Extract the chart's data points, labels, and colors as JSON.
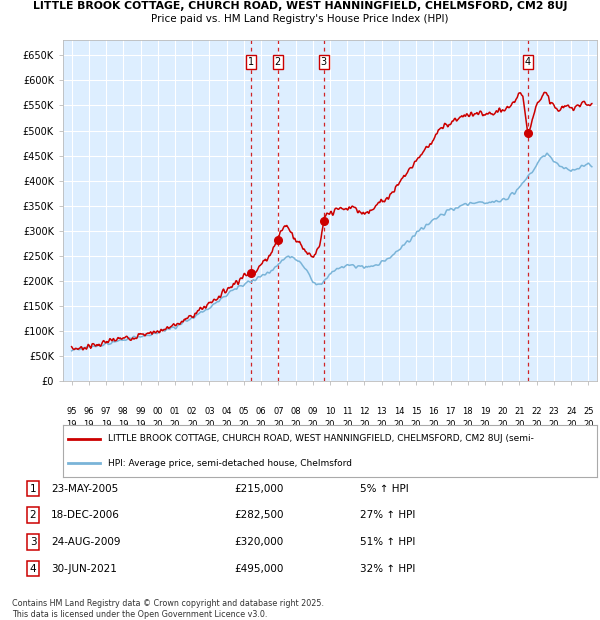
{
  "title_line1": "LITTLE BROOK COTTAGE, CHURCH ROAD, WEST HANNINGFIELD, CHELMSFORD, CM2 8UJ",
  "title_line2": "Price paid vs. HM Land Registry's House Price Index (HPI)",
  "ylabel_vals": [
    0,
    50000,
    100000,
    150000,
    200000,
    250000,
    300000,
    350000,
    400000,
    450000,
    500000,
    550000,
    600000,
    650000
  ],
  "ylabel_labels": [
    "£0",
    "£50K",
    "£100K",
    "£150K",
    "£200K",
    "£250K",
    "£300K",
    "£350K",
    "£400K",
    "£450K",
    "£500K",
    "£550K",
    "£600K",
    "£650K"
  ],
  "xlim": [
    1994.5,
    2025.5
  ],
  "ylim": [
    0,
    680000
  ],
  "xtick_years": [
    1995,
    1996,
    1997,
    1998,
    1999,
    2000,
    2001,
    2002,
    2003,
    2004,
    2005,
    2006,
    2007,
    2008,
    2009,
    2010,
    2011,
    2012,
    2013,
    2014,
    2015,
    2016,
    2017,
    2018,
    2019,
    2020,
    2021,
    2022,
    2023,
    2024,
    2025
  ],
  "sale_dates": [
    2005.388,
    2006.963,
    2009.644,
    2021.495
  ],
  "sale_prices": [
    215000,
    282500,
    320000,
    495000
  ],
  "sale_labels": [
    "1",
    "2",
    "3",
    "4"
  ],
  "red_line_color": "#cc0000",
  "blue_line_color": "#7ab4d8",
  "plot_bg_color": "#ddeeff",
  "grid_color": "#ffffff",
  "dashed_line_color": "#cc0000",
  "legend_label_red": "LITTLE BROOK COTTAGE, CHURCH ROAD, WEST HANNINGFIELD, CHELMSFORD, CM2 8UJ (semi-",
  "legend_label_blue": "HPI: Average price, semi-detached house, Chelmsford",
  "table_entries": [
    {
      "num": "1",
      "date": "23-MAY-2005",
      "price": "£215,000",
      "hpi": "5% ↑ HPI"
    },
    {
      "num": "2",
      "date": "18-DEC-2006",
      "price": "£282,500",
      "hpi": "27% ↑ HPI"
    },
    {
      "num": "3",
      "date": "24-AUG-2009",
      "price": "£320,000",
      "hpi": "51% ↑ HPI"
    },
    {
      "num": "4",
      "date": "30-JUN-2021",
      "price": "£495,000",
      "hpi": "32% ↑ HPI"
    }
  ],
  "footnote": "Contains HM Land Registry data © Crown copyright and database right 2025.\nThis data is licensed under the Open Government Licence v3.0."
}
